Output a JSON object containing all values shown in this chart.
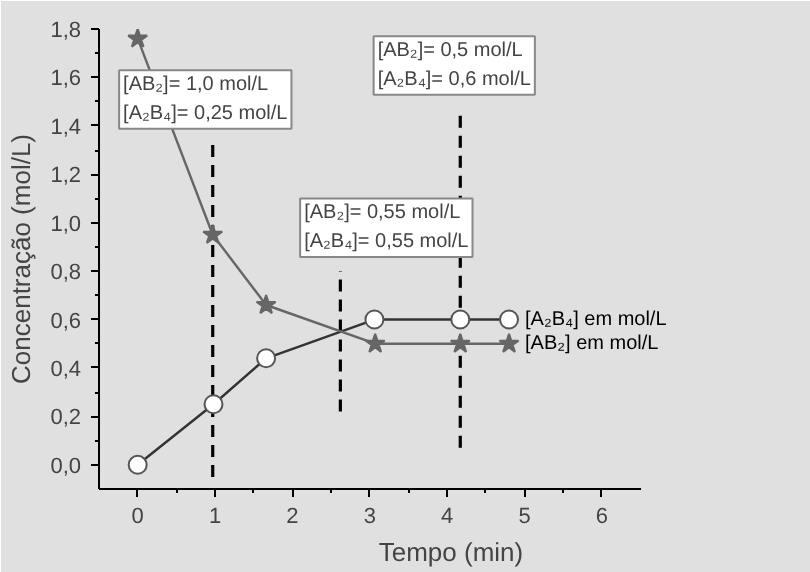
{
  "chart_data": {
    "type": "line",
    "xlabel": "Tempo (min)",
    "ylabel": "Concentração (mol/L)",
    "xlim": [
      -0.5,
      6.5
    ],
    "ylim": [
      -0.1,
      1.8
    ],
    "xticks": [
      0,
      1,
      2,
      3,
      4,
      5,
      6
    ],
    "yticks": [
      {
        "value": 0,
        "label": "0,0"
      },
      {
        "value": 0.2,
        "label": "0,2"
      },
      {
        "value": 0.4,
        "label": "0,4"
      },
      {
        "value": 0.6,
        "label": "0,6"
      },
      {
        "value": 0.8,
        "label": "0,8"
      },
      {
        "value": 1.0,
        "label": "1,0"
      },
      {
        "value": 1.2,
        "label": "1,2"
      },
      {
        "value": 1.4,
        "label": "1,4"
      },
      {
        "value": 1.6,
        "label": "1,6"
      },
      {
        "value": 1.8,
        "label": "1,8"
      }
    ],
    "series": [
      {
        "name": "[A₂B₄] em mol/L",
        "color": "#333333",
        "marker": "circle",
        "x": [
          0,
          0.98,
          1.66,
          3.06,
          4.17,
          4.8
        ],
        "values": [
          0,
          0.25,
          0.44,
          0.6,
          0.6,
          0.6
        ]
      },
      {
        "name": "[AB₂] em mol/L",
        "color": "#666666",
        "marker": "star",
        "x": [
          0,
          0.97,
          1.66,
          3.07,
          4.17,
          4.8
        ],
        "values": [
          1.76,
          0.95,
          0.66,
          0.5,
          0.5,
          0.5
        ]
      }
    ],
    "ref_lines": [
      {
        "axis": "x",
        "value": 0.97,
        "line_style": "dashed",
        "color": "#000000"
      },
      {
        "axis": "x",
        "value": 2.62,
        "line_style": "dashed",
        "color": "#000000"
      },
      {
        "axis": "x",
        "value": 4.17,
        "line_style": "dashed",
        "color": "#000000"
      }
    ],
    "annotations": [
      "[AB₂]= 1,0 mol/L\n[A₂B₄]= 0,25 mol/L",
      "[AB₂]= 0,55 mol/L\n[A₂B₄]= 0,55 mol/L",
      "[AB₂]= 0,5 mol/L\n[A₂B₄]= 0,6 mol/L"
    ]
  }
}
